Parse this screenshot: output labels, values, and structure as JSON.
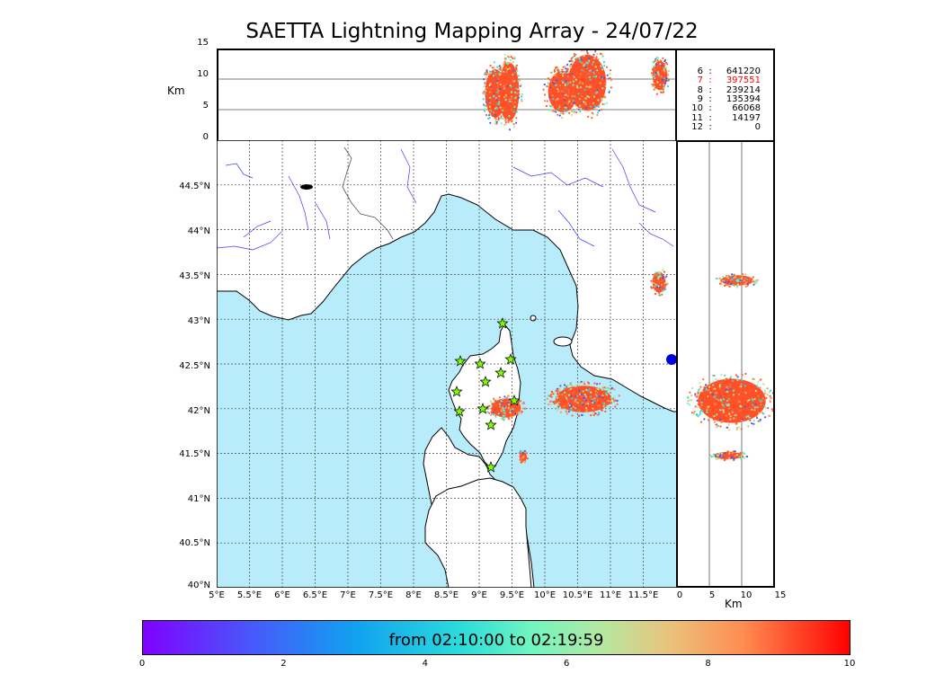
{
  "title": "SAETTA Lightning Mapping Array - 24/07/22",
  "altitude_panel": {
    "unit": "Km",
    "y_ticks": [
      "15",
      "10",
      "5",
      "0"
    ]
  },
  "side_panel": {
    "unit": "Km",
    "x_ticks": [
      "0",
      "5",
      "10",
      "15"
    ]
  },
  "map": {
    "lat_ticks": [
      "44.5°N",
      "44°N",
      "43.5°N",
      "43°N",
      "42.5°N",
      "42°N",
      "41.5°N",
      "41°N",
      "40.5°N",
      "40°N"
    ],
    "lon_ticks": [
      "5°E",
      "5.5°E",
      "6°E",
      "6.5°E",
      "7°E",
      "7.5°E",
      "8°E",
      "8.5°E",
      "9°E",
      "9.5°E",
      "10°E",
      "10.5°E",
      "11°E",
      "11.5°E"
    ],
    "sea_color": "#b9ecfb",
    "land_color": "#ffffff",
    "river_color": "#3a3aff",
    "station_marker": "green star",
    "station_color": "#7cfc00"
  },
  "counts_legend": [
    {
      "level": "6",
      "count": "641220",
      "color": "#000000"
    },
    {
      "level": "7",
      "count": "397551",
      "color": "#ff0000"
    },
    {
      "level": "8",
      "count": "239214",
      "color": "#000000"
    },
    {
      "level": "9",
      "count": "135394",
      "color": "#000000"
    },
    {
      "level": "10",
      "count": "66068",
      "color": "#000000"
    },
    {
      "level": "11",
      "count": "14197",
      "color": "#000000"
    },
    {
      "level": "12",
      "count": "0",
      "color": "#000000"
    }
  ],
  "colorbar": {
    "label": "from 02:10:00 to 02:19:59",
    "ticks": [
      "0",
      "2",
      "4",
      "6",
      "8",
      "10"
    ],
    "colormap": "rainbow"
  }
}
